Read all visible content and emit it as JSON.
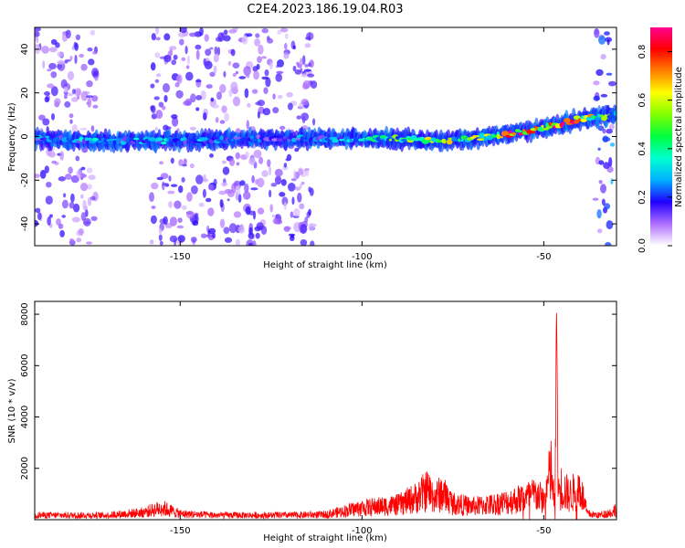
{
  "title": "C2E4.2023.186.19.04.R03",
  "chart_data": [
    {
      "type": "heatmap",
      "xlabel": "Height of straight line (km)",
      "ylabel": "Frequency (Hz)",
      "xlim": [
        -190,
        -30
      ],
      "ylim": [
        -50,
        50
      ],
      "xticks": [
        -150,
        -100,
        -50
      ],
      "yticks": [
        -40,
        -20,
        0,
        20,
        40
      ],
      "grid": false,
      "colorbar": {
        "label": "Normalized spectral amplitude",
        "range": [
          0.0,
          0.9
        ],
        "ticks": [
          0.0,
          0.2,
          0.4,
          0.6,
          0.8
        ],
        "colors": [
          "#ffffff",
          "#b070ff",
          "#2000ff",
          "#00b0ff",
          "#00ffd0",
          "#00ff40",
          "#80ff00",
          "#ffff00",
          "#ff8000",
          "#ff0000",
          "#ff0090"
        ]
      },
      "ridge": {
        "x": [
          -190,
          -170,
          -150,
          -130,
          -110,
          -100,
          -90,
          -80,
          -70,
          -60,
          -50,
          -40,
          -35,
          -30
        ],
        "freq": [
          -1,
          -2,
          -2,
          -1,
          -1,
          -1,
          -1,
          -2,
          -1,
          1,
          4,
          8,
          9,
          10
        ],
        "peak_amplitude": [
          0.25,
          0.3,
          0.3,
          0.2,
          0.25,
          0.3,
          0.45,
          0.55,
          0.5,
          0.75,
          0.8,
          0.7,
          0.5,
          0.4
        ]
      },
      "noise_regions": [
        {
          "x": [
            -190,
            -173
          ],
          "level": 0.12
        },
        {
          "x": [
            -158,
            -113
          ],
          "level": 0.12
        },
        {
          "x": [
            -36,
            -31
          ],
          "level": 0.2
        }
      ]
    },
    {
      "type": "line",
      "xlabel": "Height of straight line (km)",
      "ylabel": "SNR (10 * v/v)",
      "xlim": [
        -190,
        -30
      ],
      "ylim": [
        0,
        8500
      ],
      "xticks": [
        -150,
        -100,
        -50
      ],
      "yticks": [
        2000,
        4000,
        6000,
        8000
      ],
      "grid": false,
      "series": [
        {
          "color": "#ff0000",
          "envelope": {
            "x": [
              -190,
              -170,
              -160,
              -155,
              -150,
              -140,
              -120,
              -110,
              -100,
              -90,
              -85,
              -82,
              -80,
              -78,
              -75,
              -70,
              -65,
              -60,
              -55,
              -52,
              -50,
              -48,
              -47,
              -46.5,
              -46,
              -45,
              -43,
              -40,
              -38,
              -35,
              -31,
              -30
            ],
            "y": [
              300,
              300,
              500,
              800,
              400,
              300,
              300,
              350,
              800,
              1000,
              1500,
              2000,
              1500,
              1800,
              1100,
              900,
              1000,
              1200,
              1500,
              1700,
              1300,
              3300,
              1000,
              8300,
              2000,
              2200,
              1600,
              2200,
              400,
              300,
              500,
              800
            ]
          }
        }
      ]
    }
  ]
}
